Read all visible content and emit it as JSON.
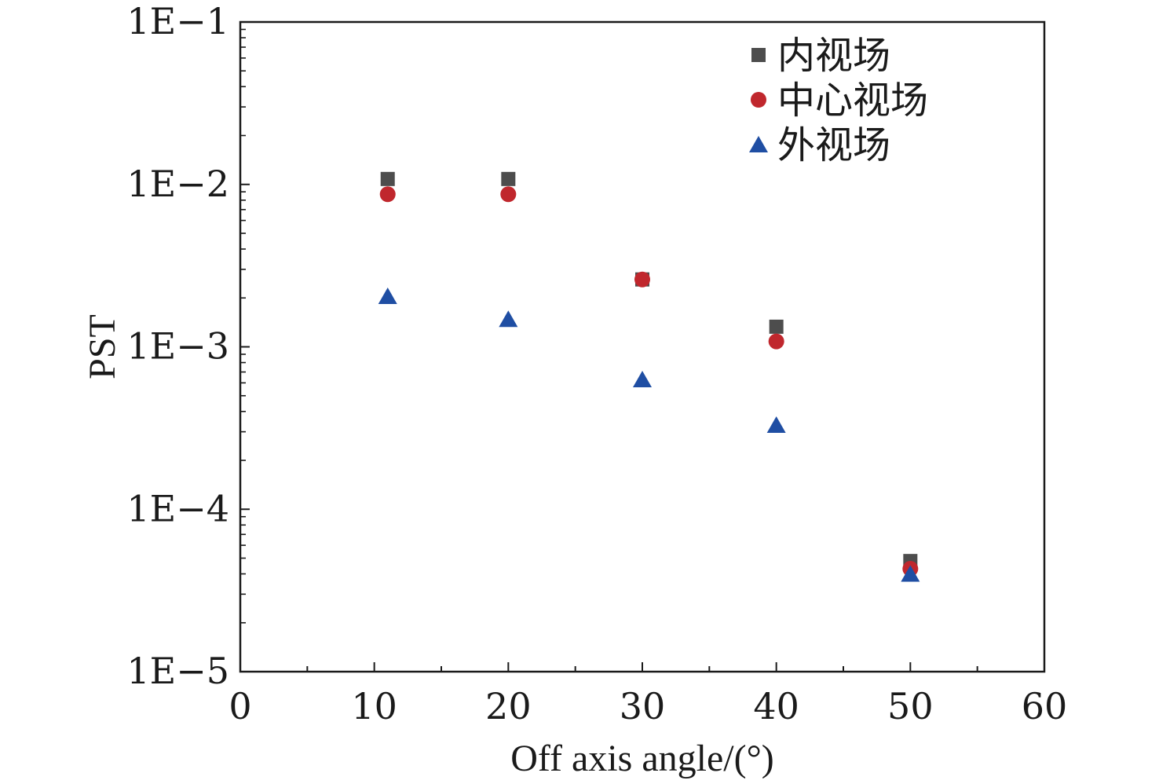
{
  "chart_data": {
    "type": "scatter",
    "title": "",
    "xlabel": "Off axis angle/(°)",
    "ylabel": "PST",
    "x_scale": "linear",
    "y_scale": "log",
    "xlim": [
      0,
      60
    ],
    "ylim": [
      1e-05,
      0.1
    ],
    "x_ticks": [
      0,
      10,
      20,
      30,
      40,
      50,
      60
    ],
    "x_tick_labels": [
      "0",
      "10",
      "20",
      "30",
      "40",
      "50",
      "60"
    ],
    "y_ticks": [
      1e-05,
      0.0001,
      0.001,
      0.01,
      0.1
    ],
    "y_tick_labels": [
      "1E−5",
      "1E−4",
      "1E−3",
      "1E−2",
      "1E−1"
    ],
    "grid": false,
    "legend_position": "top-right",
    "series": [
      {
        "name": "内视场",
        "marker": "square",
        "color": "#4d4d4d",
        "x": [
          11,
          20,
          30,
          40,
          50
        ],
        "y": [
          0.0108,
          0.0108,
          0.0026,
          0.00133,
          4.8e-05
        ]
      },
      {
        "name": "中心视场",
        "marker": "circle",
        "color": "#c0272d",
        "x": [
          11,
          20,
          30,
          40,
          50
        ],
        "y": [
          0.0087,
          0.0087,
          0.0026,
          0.00108,
          4.3e-05
        ]
      },
      {
        "name": "外视场",
        "marker": "triangle",
        "color": "#1f4ea3",
        "x": [
          11,
          20,
          30,
          40,
          50
        ],
        "y": [
          0.00205,
          0.00148,
          0.00063,
          0.00033,
          4e-05
        ]
      }
    ]
  }
}
